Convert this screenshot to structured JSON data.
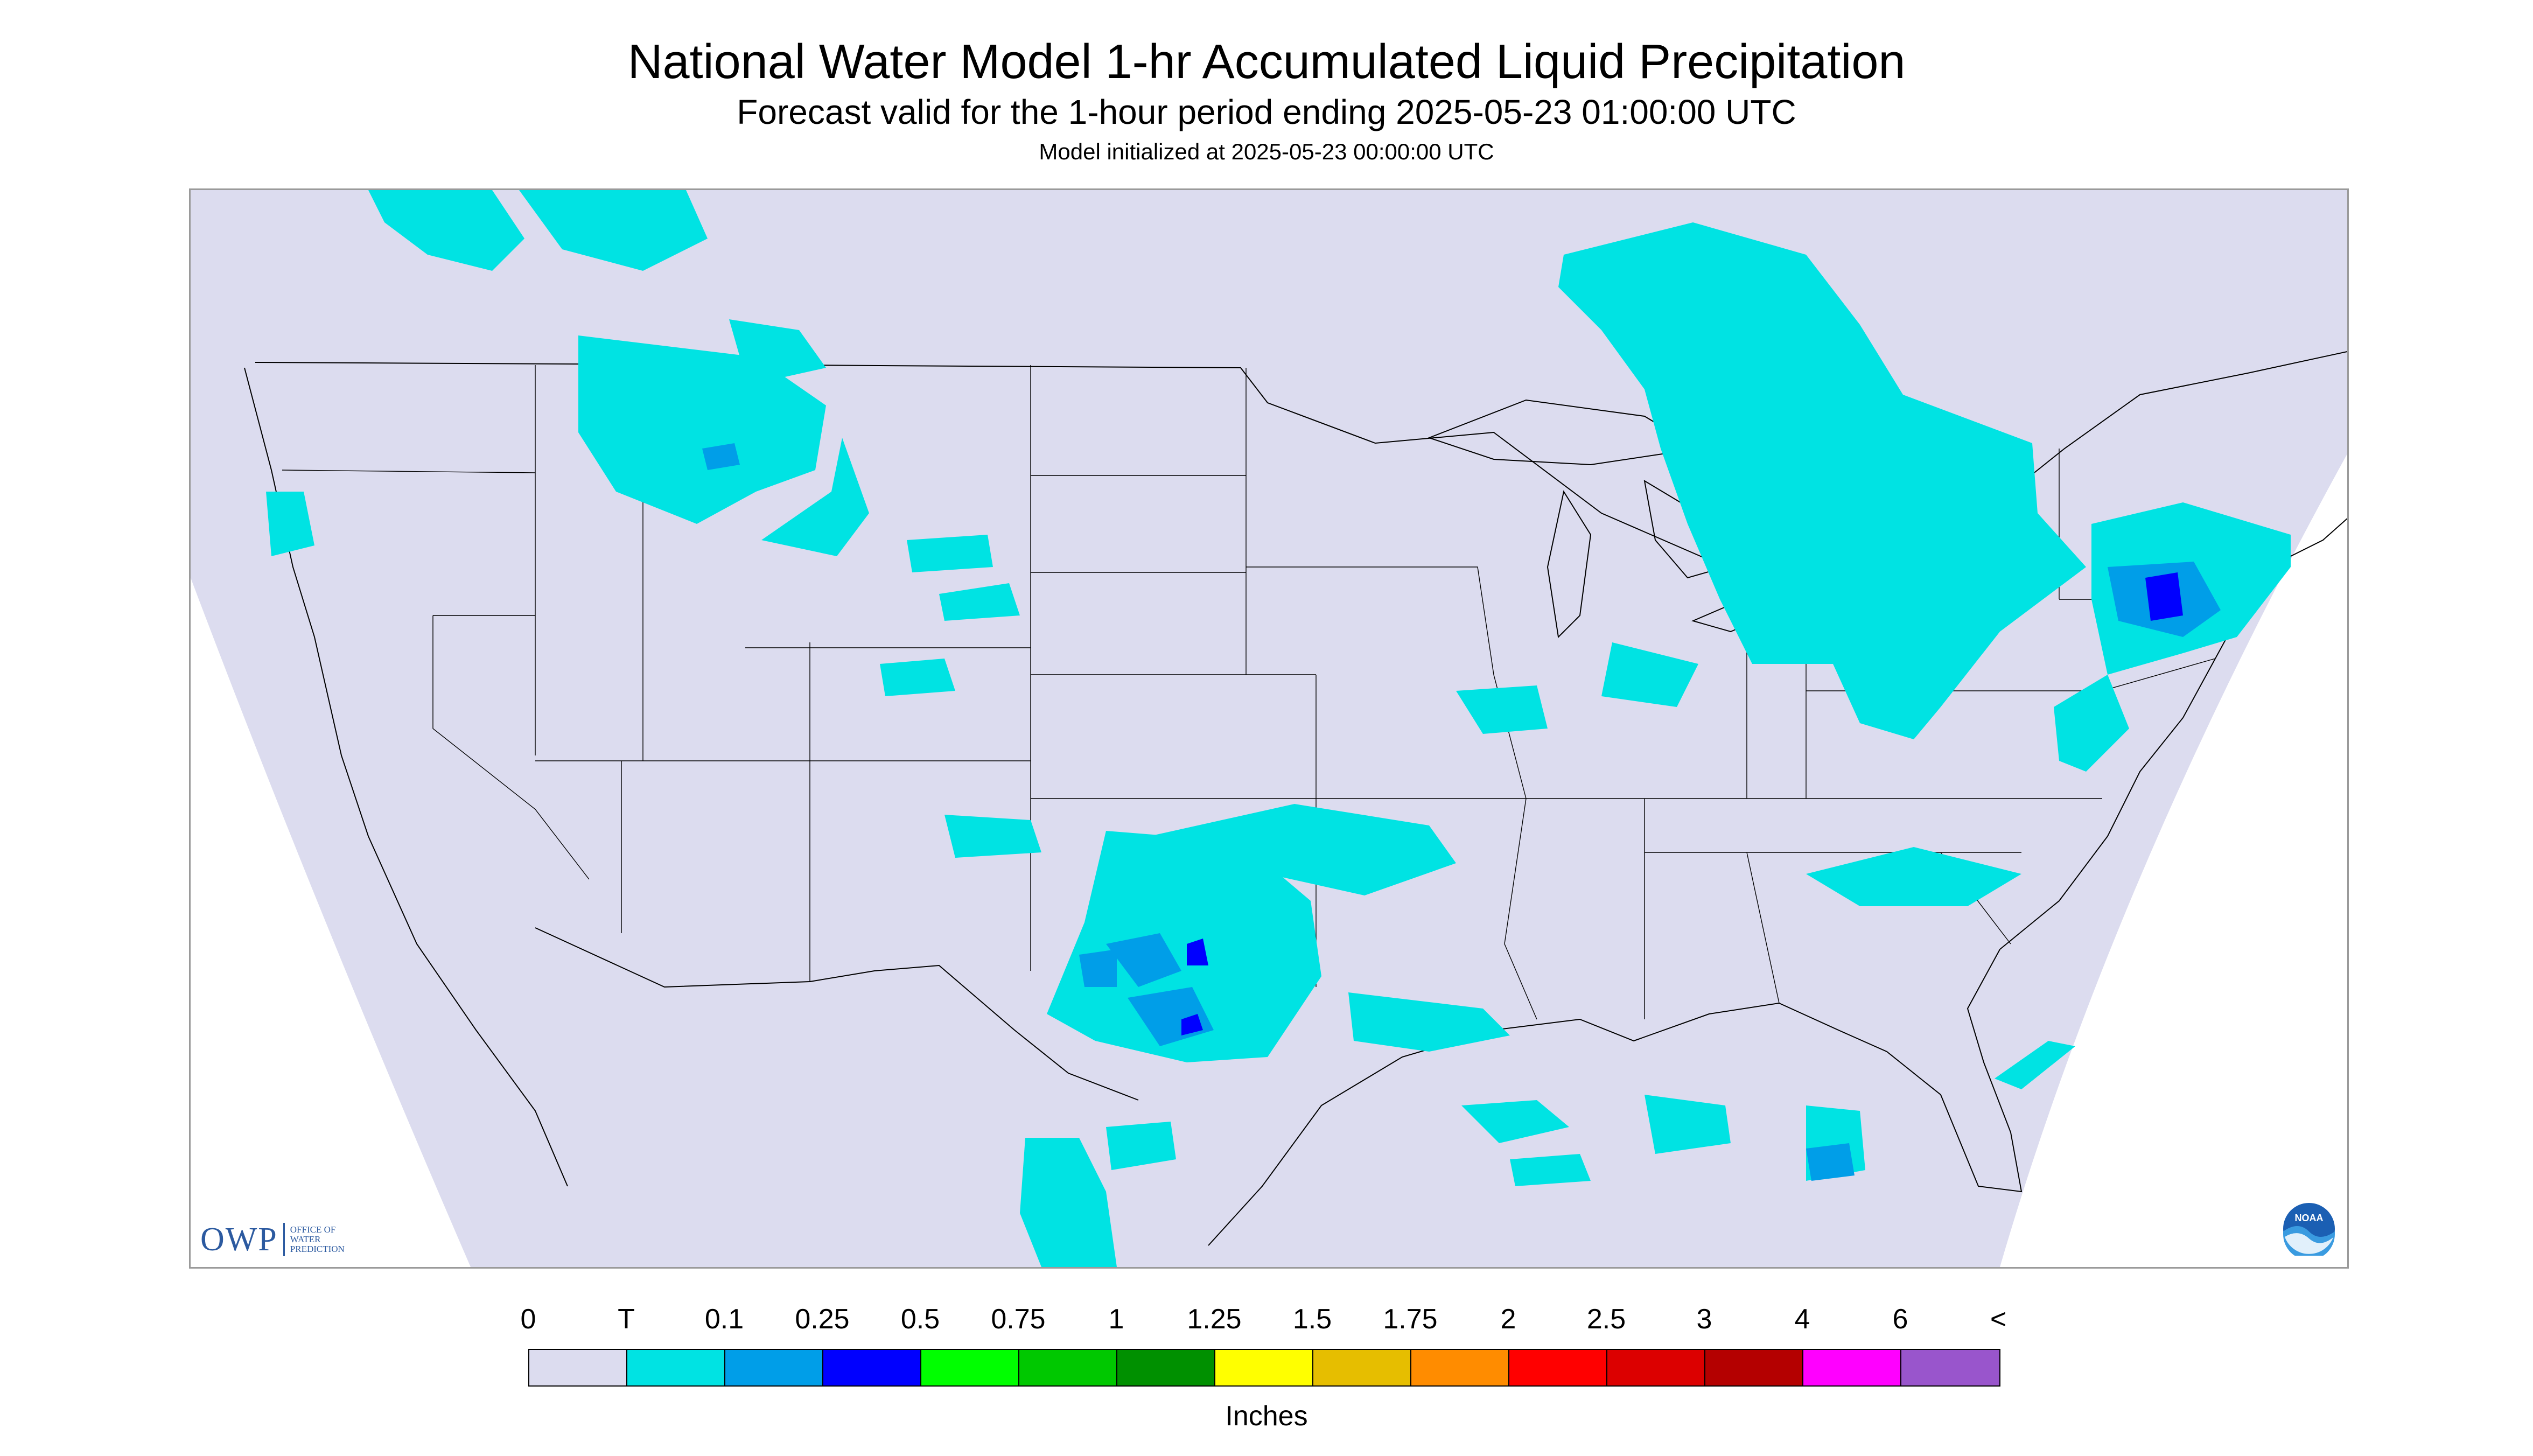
{
  "header": {
    "title": "National Water Model 1-hr Accumulated Liquid Precipitation",
    "subtitle": "Forecast valid for the 1-hour period ending 2025-05-23 01:00:00 UTC",
    "init": "Model initialized at 2025-05-23 00:00:00 UTC"
  },
  "colors": {
    "background_domain": "#dcdcef",
    "outside_domain": "#ffffff",
    "boundaries": "#000000",
    "trace": "#00e3e3",
    "light_blue": "#009ee8",
    "blue": "#0000ff"
  },
  "map": {
    "region": "Contiguous United States",
    "precip_areas": [
      {
        "location": "Northern Rockies / Montana",
        "category": "T"
      },
      {
        "location": "Northern Idaho / NW Montana",
        "category": "0.1"
      },
      {
        "location": "Pacific Northwest",
        "category": "T"
      },
      {
        "location": "Great Lakes / Ontario / Quebec",
        "category": "T"
      },
      {
        "location": "Northeast / New England",
        "category": "0.1"
      },
      {
        "location": "Southern New England / Rhode Island",
        "category": "0.25"
      },
      {
        "location": "Mid-Atlantic / Appalachians",
        "category": "T"
      },
      {
        "location": "Texas / Oklahoma",
        "category": "0.1"
      },
      {
        "location": "North-Central Texas",
        "category": "0.25"
      },
      {
        "location": "Louisiana Gulf Coast",
        "category": "T"
      },
      {
        "location": "South Florida",
        "category": "0.1"
      },
      {
        "location": "Northern Mexico",
        "category": "T"
      },
      {
        "location": "Southern Plains / Colorado",
        "category": "T"
      }
    ]
  },
  "logos": {
    "owp_letters": "OWP",
    "owp_line1": "OFFICE OF",
    "owp_line2": "WATER",
    "owp_line3": "PREDICTION",
    "noaa": "NOAA"
  },
  "legend": {
    "units": "Inches",
    "ticks": [
      "0",
      "T",
      "0.1",
      "0.25",
      "0.5",
      "0.75",
      "1",
      "1.25",
      "1.5",
      "1.75",
      "2",
      "2.5",
      "3",
      "4",
      "6",
      "<"
    ],
    "bins": [
      {
        "label": "0-T",
        "color": "#dcdcef"
      },
      {
        "label": "T-0.1",
        "color": "#00e3e3"
      },
      {
        "label": "0.1-0.25",
        "color": "#009ee8"
      },
      {
        "label": "0.25-0.5",
        "color": "#0000ff"
      },
      {
        "label": "0.5-0.75",
        "color": "#00ff00"
      },
      {
        "label": "0.75-1",
        "color": "#00c800"
      },
      {
        "label": "1-1.25",
        "color": "#009000"
      },
      {
        "label": "1.25-1.5",
        "color": "#ffff00"
      },
      {
        "label": "1.5-1.75",
        "color": "#e6be00"
      },
      {
        "label": "1.75-2",
        "color": "#ff8c00"
      },
      {
        "label": "2-2.5",
        "color": "#ff0000"
      },
      {
        "label": "2.5-3",
        "color": "#dc0000"
      },
      {
        "label": "3-4",
        "color": "#b40000"
      },
      {
        "label": "4-6",
        "color": "#ff00ff"
      },
      {
        "label": "6+",
        "color": "#9955cc"
      }
    ]
  }
}
